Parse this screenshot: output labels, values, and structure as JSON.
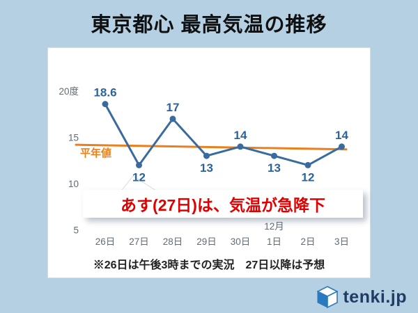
{
  "title": "東京都心 最高気温の推移",
  "chart_data": {
    "type": "line",
    "title": "東京都心 最高気温の推移",
    "categories": [
      "26日",
      "27日",
      "28日",
      "29日",
      "30日",
      "1日",
      "2日",
      "3日"
    ],
    "month_label": {
      "index": 5,
      "text": "12月"
    },
    "series": [
      {
        "name": "最高気温",
        "color": "#3a6b9e",
        "values": [
          18.6,
          12,
          17,
          13,
          14,
          13,
          12,
          14
        ],
        "label_positions": [
          "above",
          "below",
          "above",
          "below",
          "above",
          "below",
          "below",
          "above"
        ]
      }
    ],
    "normal_line": {
      "label": "平年値",
      "color": "#e8801e",
      "start": 14.2,
      "end": 13.7
    },
    "y_ticks": [
      {
        "value": 20,
        "label": "20度"
      },
      {
        "value": 15,
        "label": "15"
      },
      {
        "value": 10,
        "label": "10"
      },
      {
        "value": 5,
        "label": "5"
      }
    ],
    "ylim": [
      5,
      21
    ],
    "grid": false,
    "legend": "none"
  },
  "callout": {
    "text": "あす(27日)は、気温が急降下"
  },
  "footnote": "※26日は午後3時までの実況　27日以降は予想",
  "logo": {
    "text": "tenki.jp"
  },
  "colors": {
    "background": "#b4d0e2",
    "panel": "#ffffff",
    "accent_blue": "#3a6b9e",
    "accent_orange": "#e8801e",
    "alert_red": "#e00000"
  }
}
